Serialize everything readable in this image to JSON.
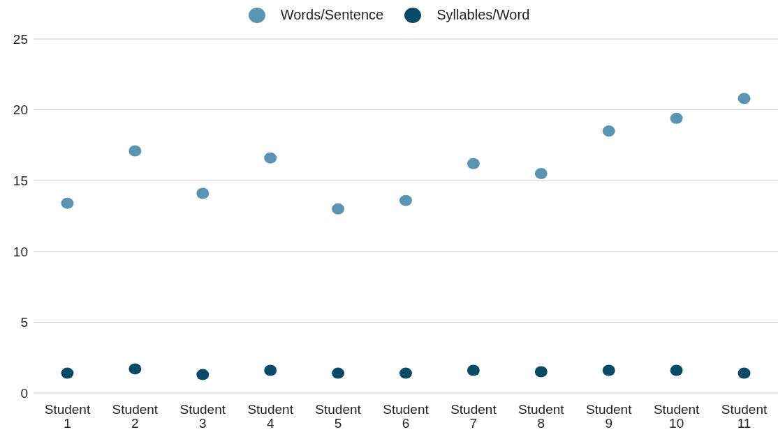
{
  "chart_data": {
    "type": "scatter",
    "categories": [
      "Student 1",
      "Student 2",
      "Student 3",
      "Student 4",
      "Student 5",
      "Student 6",
      "Student 7",
      "Student 8",
      "Student 9",
      "Student 10",
      "Student 11"
    ],
    "series": [
      {
        "name": "Words/Sentence",
        "color": "#5b93b3",
        "values": [
          13.4,
          17.1,
          14.1,
          16.6,
          13.0,
          13.6,
          16.2,
          15.5,
          18.5,
          19.4,
          20.8
        ]
      },
      {
        "name": "Syllables/Word",
        "color": "#0b4a66",
        "values": [
          1.4,
          1.7,
          1.3,
          1.6,
          1.4,
          1.4,
          1.6,
          1.5,
          1.6,
          1.6,
          1.4
        ]
      }
    ],
    "ylim": [
      0,
      25
    ],
    "yticks": [
      0,
      5,
      10,
      15,
      20,
      25
    ],
    "grid": "y",
    "legend": "top",
    "marker": "circle"
  }
}
